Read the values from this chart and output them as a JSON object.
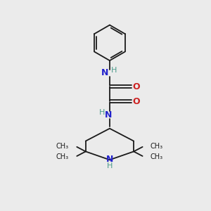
{
  "bg_color": "#ebebeb",
  "bond_color": "#1a1a1a",
  "N_color": "#2222cc",
  "O_color": "#cc2222",
  "NH_color": "#4a9a8a",
  "figsize": [
    3.0,
    3.0
  ],
  "dpi": 100,
  "xlim": [
    0,
    10
  ],
  "ylim": [
    0,
    10
  ]
}
